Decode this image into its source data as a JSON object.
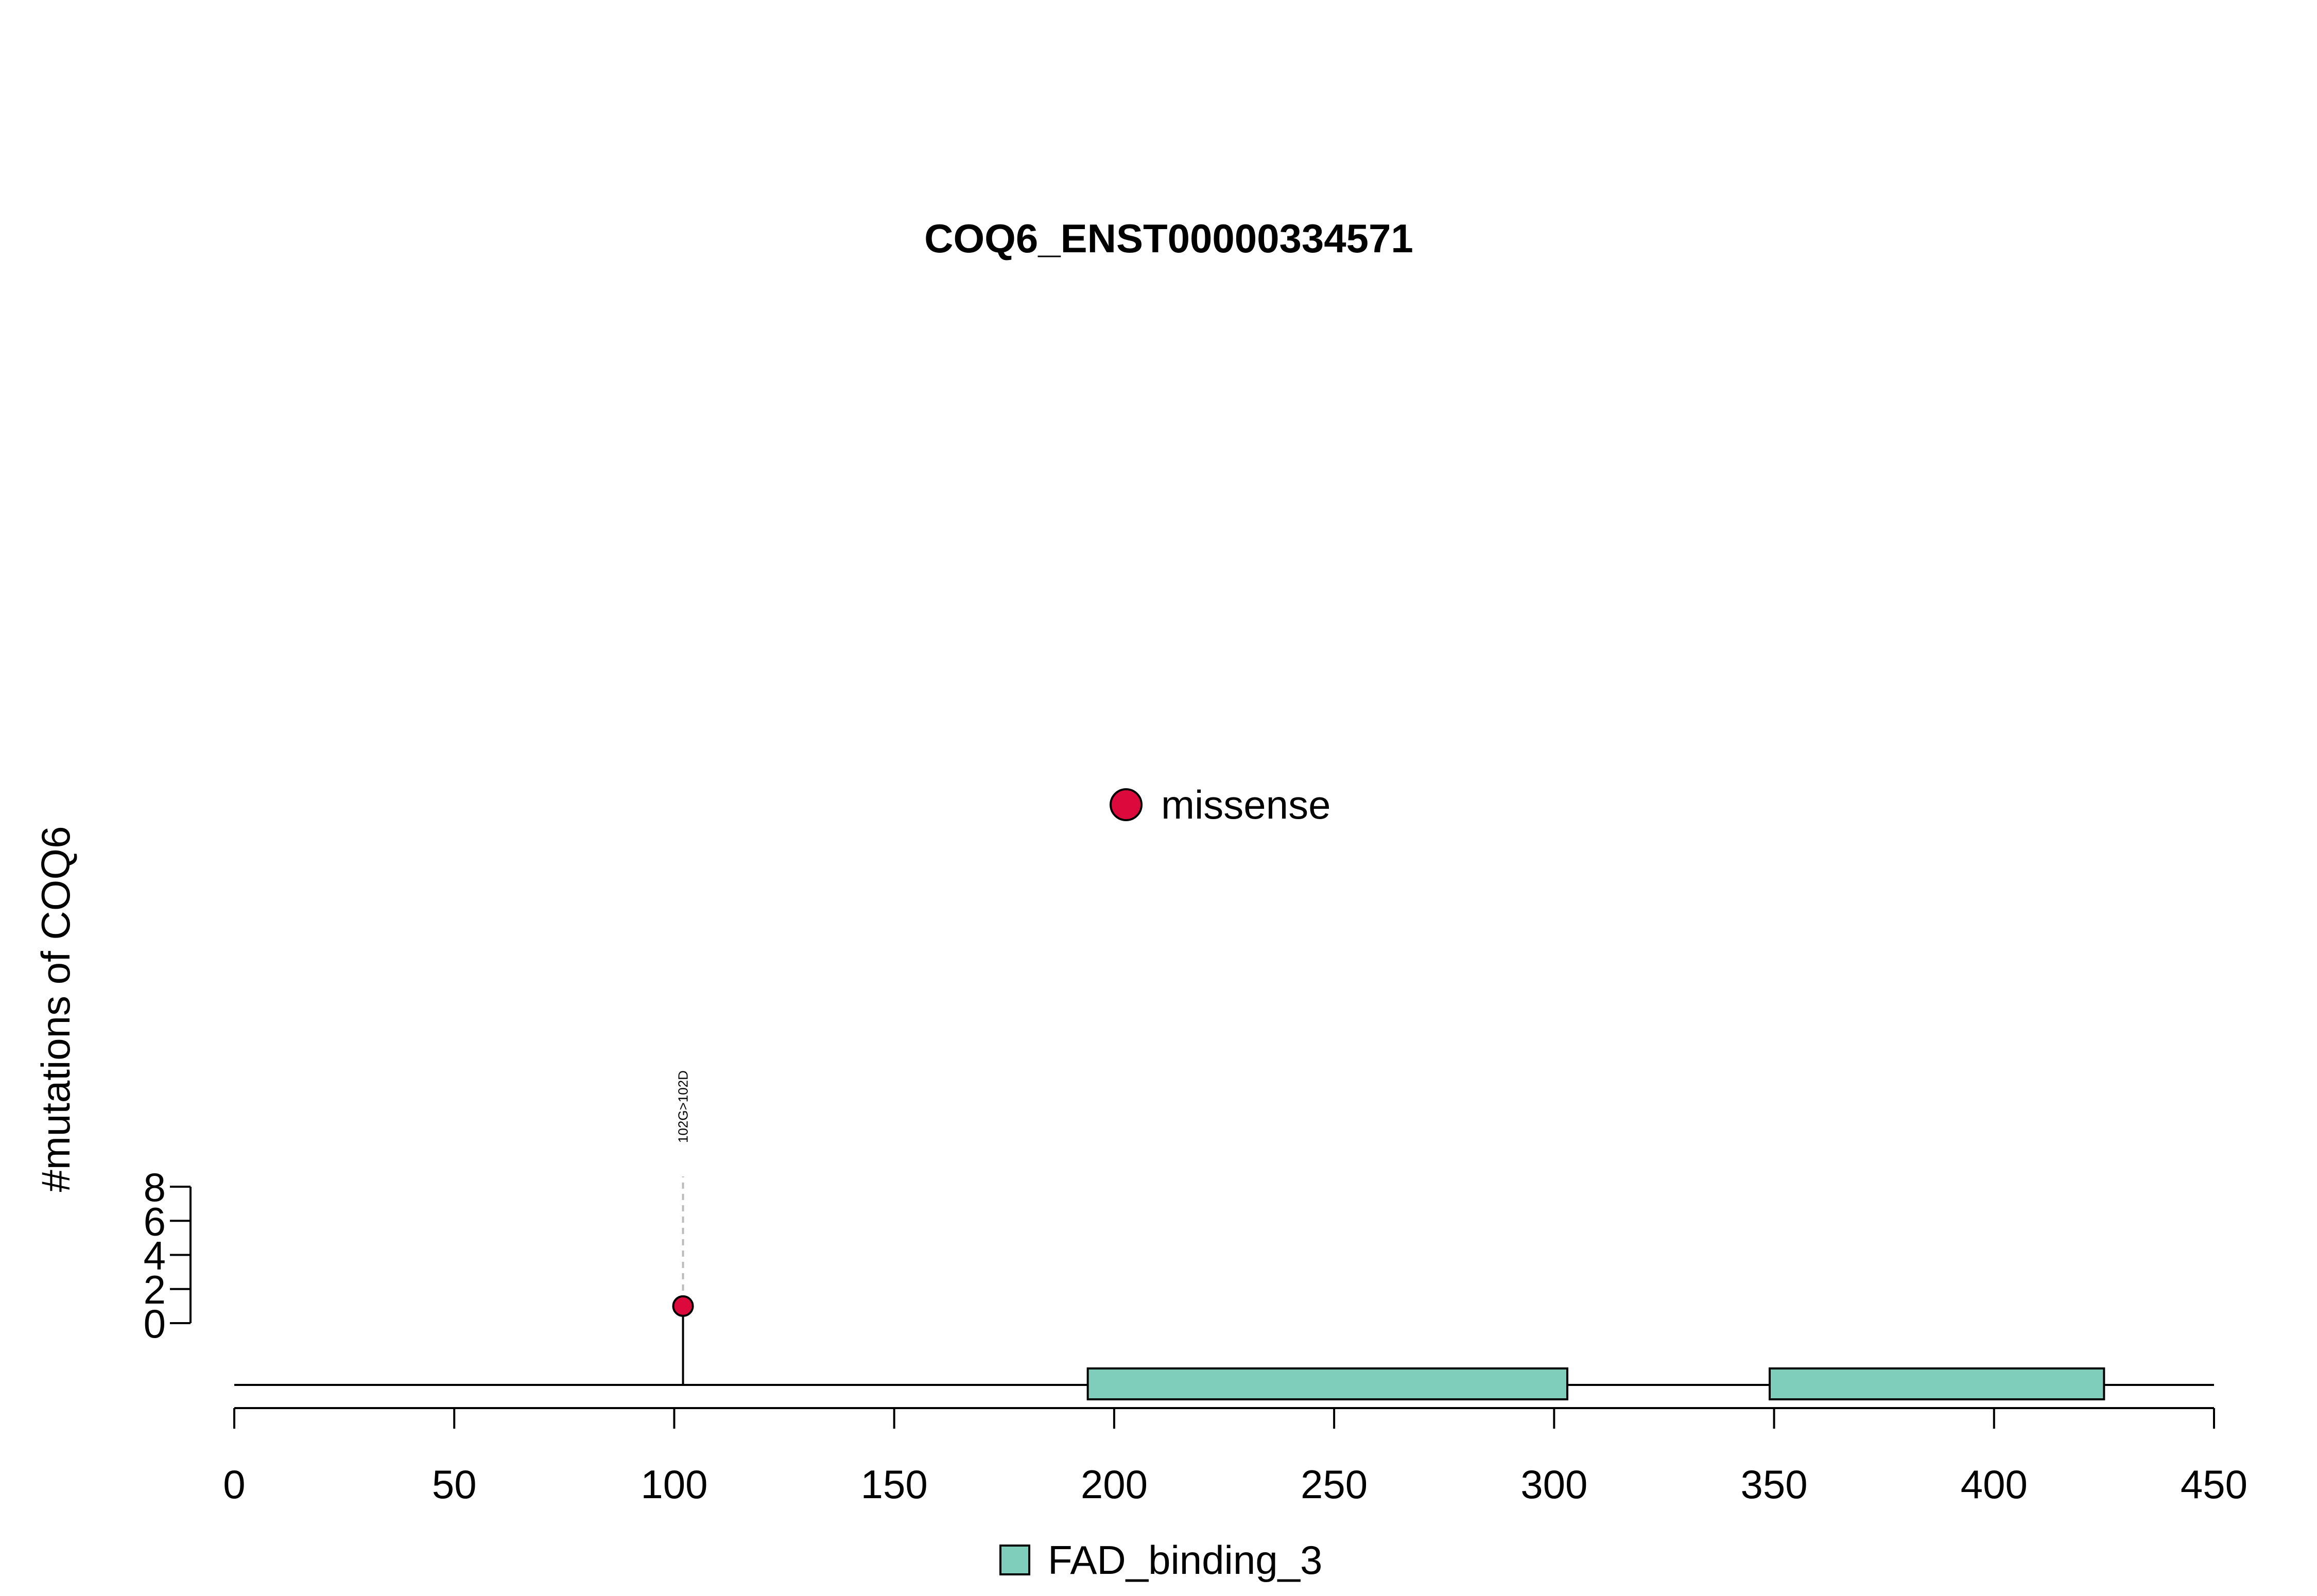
{
  "chart_data": {
    "type": "lollipop",
    "title": "COQ6_ENST00000334571",
    "ylabel": "#mutations of COQ6",
    "xlim": [
      0,
      450
    ],
    "x_ticks": [
      0,
      50,
      100,
      150,
      200,
      250,
      300,
      350,
      400,
      450
    ],
    "ylim": [
      0,
      8
    ],
    "y_ticks": [
      0,
      2,
      4,
      6,
      8
    ],
    "mutations": [
      {
        "position": 102,
        "count": 1,
        "label": "102G>102D",
        "type": "missense"
      }
    ],
    "mutation_legend": [
      {
        "label": "missense",
        "color": "#dc0a3c"
      }
    ],
    "domains": [
      {
        "name": "FAD_binding_3",
        "start": 194,
        "end": 303
      },
      {
        "name": "FAD_binding_3",
        "start": 349,
        "end": 425
      }
    ],
    "domain_legend": [
      {
        "label": "FAD_binding_3",
        "color": "#7fcdbb"
      }
    ],
    "colors": {
      "missense": "#dc0a3c",
      "domain": "#7fcdbb",
      "axis": "#000000",
      "stem_dash": "#bbbbbb"
    }
  }
}
